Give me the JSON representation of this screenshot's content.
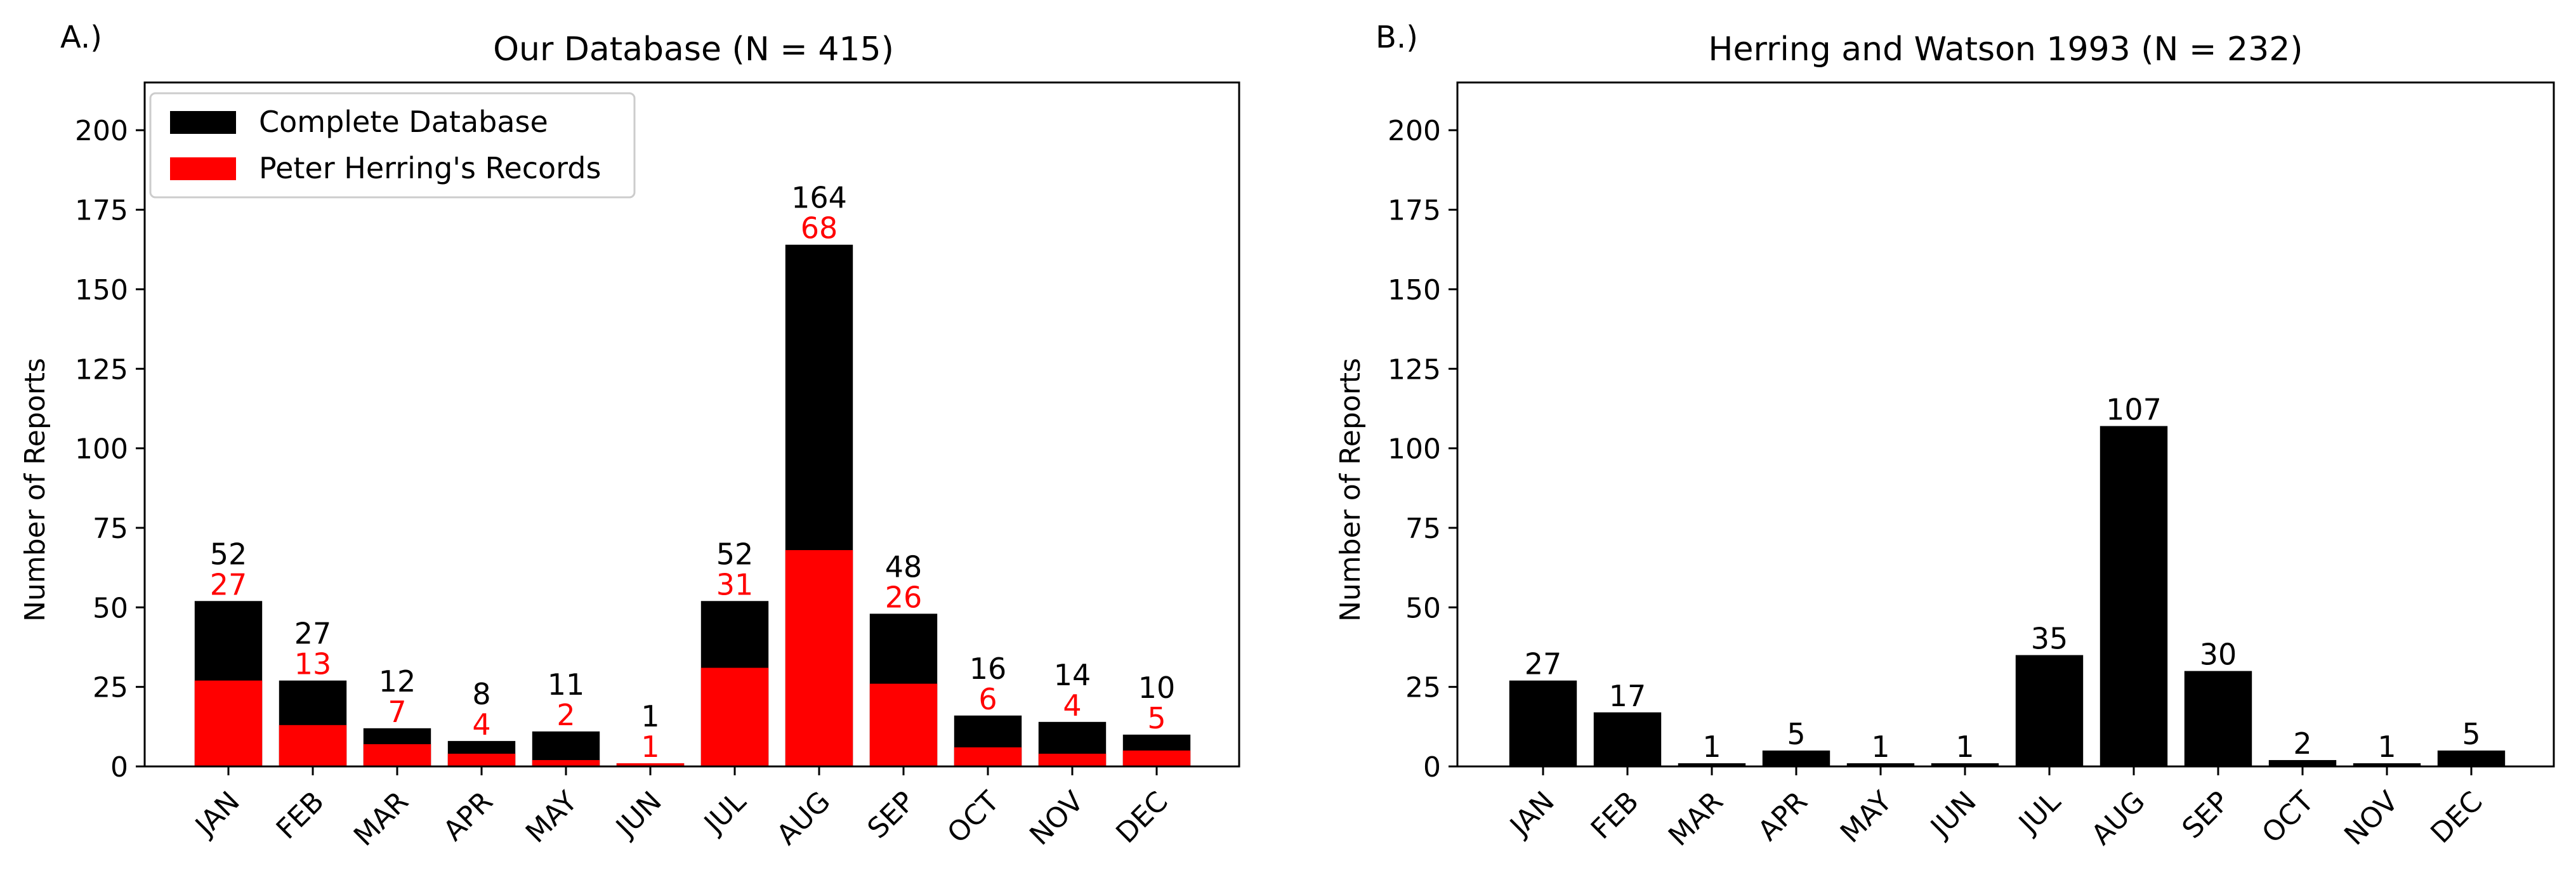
{
  "colors": {
    "total": "#000000",
    "herring": "#ff0000",
    "axis": "#000000",
    "background": "#ffffff"
  },
  "chart_data": [
    {
      "panel_label": "A.)",
      "type": "bar",
      "title": "Our Database  (N = 415)",
      "xlabel": "",
      "ylabel": "Number of Reports",
      "ylim": [
        0,
        215
      ],
      "yticks": [
        0,
        25,
        50,
        75,
        100,
        125,
        150,
        175,
        200
      ],
      "grid": false,
      "legend_position": "upper-left",
      "categories": [
        "JAN",
        "FEB",
        "MAR",
        "APR",
        "MAY",
        "JUN",
        "JUL",
        "AUG",
        "SEP",
        "OCT",
        "NOV",
        "DEC"
      ],
      "series": [
        {
          "name": "Complete Database",
          "color": "#000000",
          "values": [
            52,
            27,
            12,
            8,
            11,
            1,
            52,
            164,
            48,
            16,
            14,
            10
          ]
        },
        {
          "name": "Peter Herring's Records",
          "color": "#ff0000",
          "values": [
            27,
            13,
            7,
            4,
            2,
            1,
            31,
            68,
            26,
            6,
            4,
            5
          ]
        }
      ]
    },
    {
      "panel_label": "B.)",
      "type": "bar",
      "title": "Herring and Watson 1993 (N = 232)",
      "xlabel": "",
      "ylabel": "Number of Reports",
      "ylim": [
        0,
        215
      ],
      "yticks": [
        0,
        25,
        50,
        75,
        100,
        125,
        150,
        175,
        200
      ],
      "grid": false,
      "categories": [
        "JAN",
        "FEB",
        "MAR",
        "APR",
        "MAY",
        "JUN",
        "JUL",
        "AUG",
        "SEP",
        "OCT",
        "NOV",
        "DEC"
      ],
      "series": [
        {
          "color": "#000000",
          "values": [
            27,
            17,
            1,
            5,
            1,
            1,
            35,
            107,
            30,
            2,
            1,
            5
          ]
        }
      ]
    }
  ]
}
